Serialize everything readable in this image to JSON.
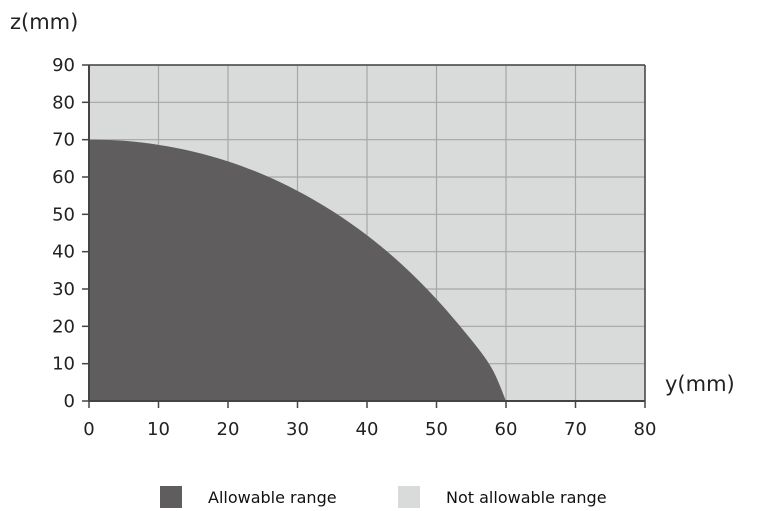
{
  "chart_data": {
    "type": "area",
    "xlabel": "y(mm)",
    "ylabel": "z(mm)",
    "xlim": [
      0,
      80
    ],
    "ylim": [
      0,
      90
    ],
    "xticks": [
      "0",
      "10",
      "20",
      "30",
      "40",
      "50",
      "60",
      "70",
      "80"
    ],
    "yticks": [
      "0",
      "10",
      "20",
      "30",
      "40",
      "50",
      "60",
      "70",
      "80",
      "90"
    ],
    "grid": true,
    "legend_position": "bottom",
    "series": [
      {
        "name": "Allowable range",
        "x": [
          0,
          5,
          10,
          15,
          20,
          25,
          30,
          35,
          40,
          45,
          50,
          55,
          58,
          60
        ],
        "y": [
          70,
          69.7,
          68.6,
          66.8,
          64.2,
          60.7,
          56.3,
          50.9,
          44.4,
          36.6,
          27.3,
          16.4,
          8.6,
          0
        ]
      }
    ],
    "legend": [
      {
        "label": "Allowable range",
        "color": "#5f5d5e"
      },
      {
        "label": "Not allowable range",
        "color": "#d9dbdb"
      }
    ],
    "colors": {
      "allowable": "#5f5d5e",
      "not_allowable": "#d9dbdb",
      "grid": "#a6a6a6",
      "axis": "#444444"
    }
  }
}
